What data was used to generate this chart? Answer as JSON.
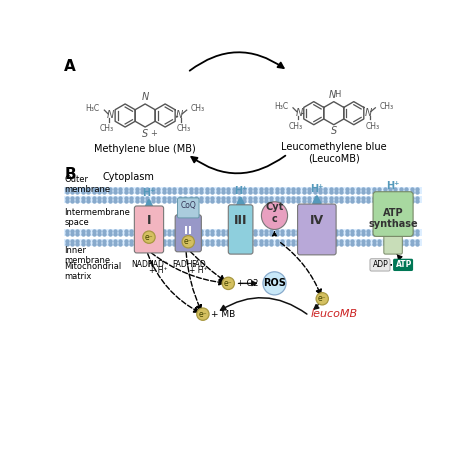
{
  "title_a": "A",
  "title_b": "B",
  "mb_label": "Methylene blue (MB)",
  "leucomb_label": "Leucomethylene blue\n(LeucoMB)",
  "cytoplasm": "Cytoplasm",
  "outer_membrane": "Outer\nmembrane",
  "intermembrane": "Intermembrane\nspace",
  "inner_membrane": "Inner\nmembrane",
  "mito_matrix": "Mitochondrial\nmatrix",
  "complex_colors": {
    "I": "#f2b5c0",
    "II": "#9898c8",
    "CoQ": "#aaccdd",
    "III": "#8ecfdd",
    "cyt_c": "#e8a0c0",
    "IV": "#b8a8d8",
    "atp": "#a8d8a0"
  },
  "h_arrow_color": "#5599bb",
  "atp_arrow_color": "#5599bb",
  "membrane_fill": "#ddeeff",
  "membrane_dot": "#88aacc",
  "bg_color": "#ffffff",
  "struct_color": "#555555",
  "red_color": "#cc2222",
  "electron_fill": "#d4c060",
  "electron_edge": "#a89840",
  "ros_fill": "#c8e8f8",
  "ros_edge": "#88aacc",
  "adp_fill": "#e8e8e8",
  "atp_pill_fill": "#007755",
  "dashed_color": "#111111"
}
